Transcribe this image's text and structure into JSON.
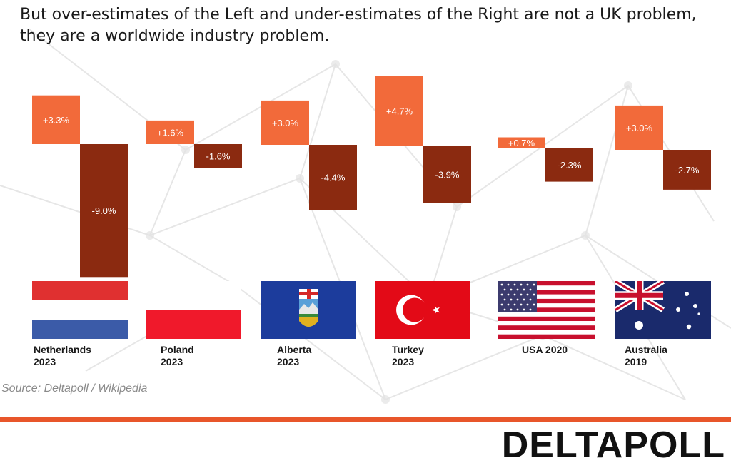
{
  "title": "But over-estimates of the Left and under-estimates of the Right are not a UK problem, they are a worldwide industry problem.",
  "source": "Source: Deltapoll / Wikipedia",
  "logo_text": "DELTAPOLL",
  "colors": {
    "left": "#f26a3a",
    "right": "#8b2a10",
    "accent_rule": "#e8562a"
  },
  "chart_data": {
    "type": "bar",
    "categories": [
      "Netherlands 2023",
      "Poland 2023",
      "Alberta 2023",
      "Turkey 2023",
      "USA 2020",
      "Australia 2019"
    ],
    "series": [
      {
        "values": [
          3.3,
          1.6,
          3.0,
          4.7,
          0.7,
          3.0
        ],
        "labels": [
          "+3.3%",
          "+1.6%",
          "+3.0%",
          "+4.7%",
          "+0.7%",
          "+3.0%"
        ]
      },
      {
        "values": [
          -9.0,
          -1.6,
          -4.4,
          -3.9,
          -2.3,
          -2.7
        ],
        "labels": [
          "-9.0%",
          "-1.6%",
          "-4.4%",
          "-3.9%",
          "-2.3%",
          "-2.7%"
        ]
      }
    ]
  },
  "countries": [
    {
      "line1": "Netherlands",
      "line2": "2023",
      "flag": "netherlands-flag"
    },
    {
      "line1": "Poland",
      "line2": "2023",
      "flag": "poland-flag"
    },
    {
      "line1": "Alberta",
      "line2": "2023",
      "flag": "alberta-flag"
    },
    {
      "line1": "Turkey",
      "line2": "2023",
      "flag": "turkey-flag"
    },
    {
      "line1": "USA 2020",
      "line2": "",
      "flag": "usa-flag"
    },
    {
      "line1": "Australia",
      "line2": "2019",
      "flag": "australia-flag"
    }
  ]
}
